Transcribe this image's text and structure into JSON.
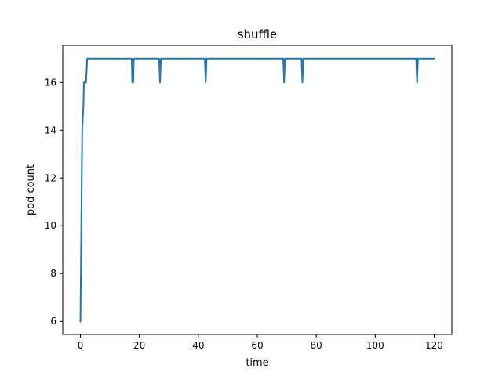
{
  "chart_data": {
    "type": "line",
    "title": "shuffle",
    "xlabel": "time",
    "ylabel": "pod count",
    "xlim": [
      -6,
      126
    ],
    "ylim": [
      5.45,
      17.55
    ],
    "xticks": [
      0,
      20,
      40,
      60,
      80,
      100,
      120
    ],
    "yticks": [
      6,
      8,
      10,
      12,
      14,
      16
    ],
    "grid": false,
    "series": [
      {
        "name": "pod count",
        "color": "#1f77b4",
        "x": [
          0,
          0.6,
          1.0,
          1.2,
          1.9,
          2.3,
          17.4,
          17.6,
          17.9,
          18.1,
          26.7,
          27.0,
          27.3,
          42.2,
          42.5,
          42.8,
          68.8,
          69.1,
          69.4,
          75.0,
          75.3,
          75.6,
          113.9,
          114.2,
          114.5,
          120
        ],
        "y": [
          6,
          14,
          15,
          16,
          16,
          17,
          17,
          16,
          16,
          17,
          17,
          16,
          17,
          17,
          16,
          17,
          17,
          16,
          17,
          17,
          16,
          17,
          17,
          16,
          17,
          17
        ]
      }
    ]
  }
}
